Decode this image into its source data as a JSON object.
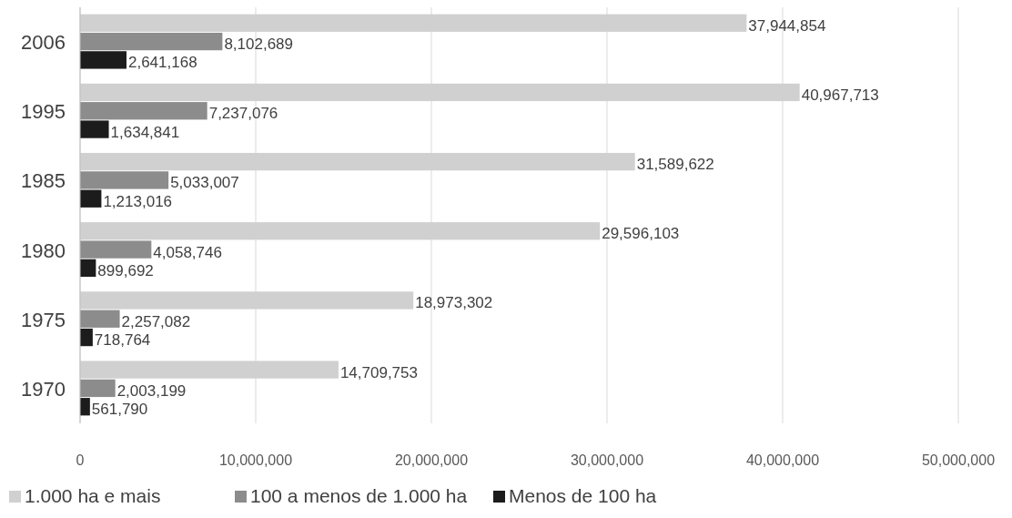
{
  "chart_data": {
    "type": "bar",
    "orientation": "horizontal",
    "categories": [
      "2006",
      "1995",
      "1985",
      "1980",
      "1975",
      "1970"
    ],
    "series": [
      {
        "name": "1.000 ha e mais",
        "color": "#d0d0d0",
        "values": [
          37944854,
          40967713,
          31589622,
          29596103,
          18973302,
          14709753
        ],
        "value_labels": [
          "37,944,854",
          "40,967,713",
          "31,589,622",
          "29,596,103",
          "18,973,302",
          "14,709,753"
        ]
      },
      {
        "name": "100 a menos de 1.000 ha",
        "color": "#8c8c8c",
        "values": [
          8102689,
          7237076,
          5033007,
          4058746,
          2257082,
          2003199
        ],
        "value_labels": [
          "8,102,689",
          "7,237,076",
          "5,033,007",
          "4,058,746",
          "2,257,082",
          "2,003,199"
        ]
      },
      {
        "name": "Menos de 100 ha",
        "color": "#1c1c1c",
        "values": [
          2641168,
          1634841,
          1213016,
          899692,
          718764,
          561790
        ],
        "value_labels": [
          "2,641,168",
          "1,634,841",
          "1,213,016",
          "899,692",
          "718,764",
          "561,790"
        ]
      }
    ],
    "xlim": [
      0,
      50000000
    ],
    "xticks": [
      {
        "value": 0,
        "label": "0"
      },
      {
        "value": 10000000,
        "label": "10,000,000"
      },
      {
        "value": 20000000,
        "label": "20,000,000"
      },
      {
        "value": 30000000,
        "label": "30,000,000"
      },
      {
        "value": 40000000,
        "label": "40,000,000"
      },
      {
        "value": 50000000,
        "label": "50,000,000"
      }
    ],
    "grid": "x",
    "legend": "bottom"
  }
}
